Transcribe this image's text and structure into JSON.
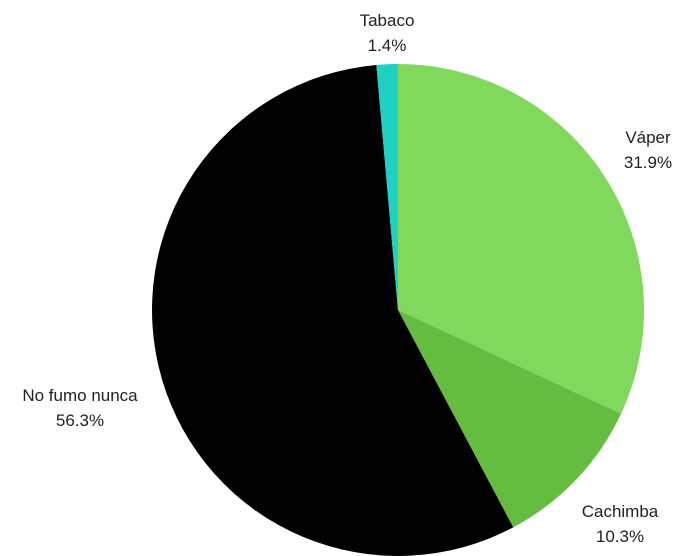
{
  "chart_data": {
    "type": "pie",
    "title": "",
    "start": "top",
    "direction": "clockwise",
    "slices": [
      {
        "label": "Váper",
        "value": 31.9,
        "percent_label": "31.9%",
        "color": "#80d95c"
      },
      {
        "label": "Cachimba",
        "value": 10.3,
        "percent_label": "10.3%",
        "color": "#64bc40"
      },
      {
        "label": "No fumo nunca",
        "value": 56.3,
        "percent_label": "56.3%",
        "color": "#000000"
      },
      {
        "label": "Tabaco",
        "value": 1.4,
        "percent_label": "1.4%",
        "color": "#1fd1c2"
      }
    ],
    "legend": "none",
    "labels": "outside"
  }
}
